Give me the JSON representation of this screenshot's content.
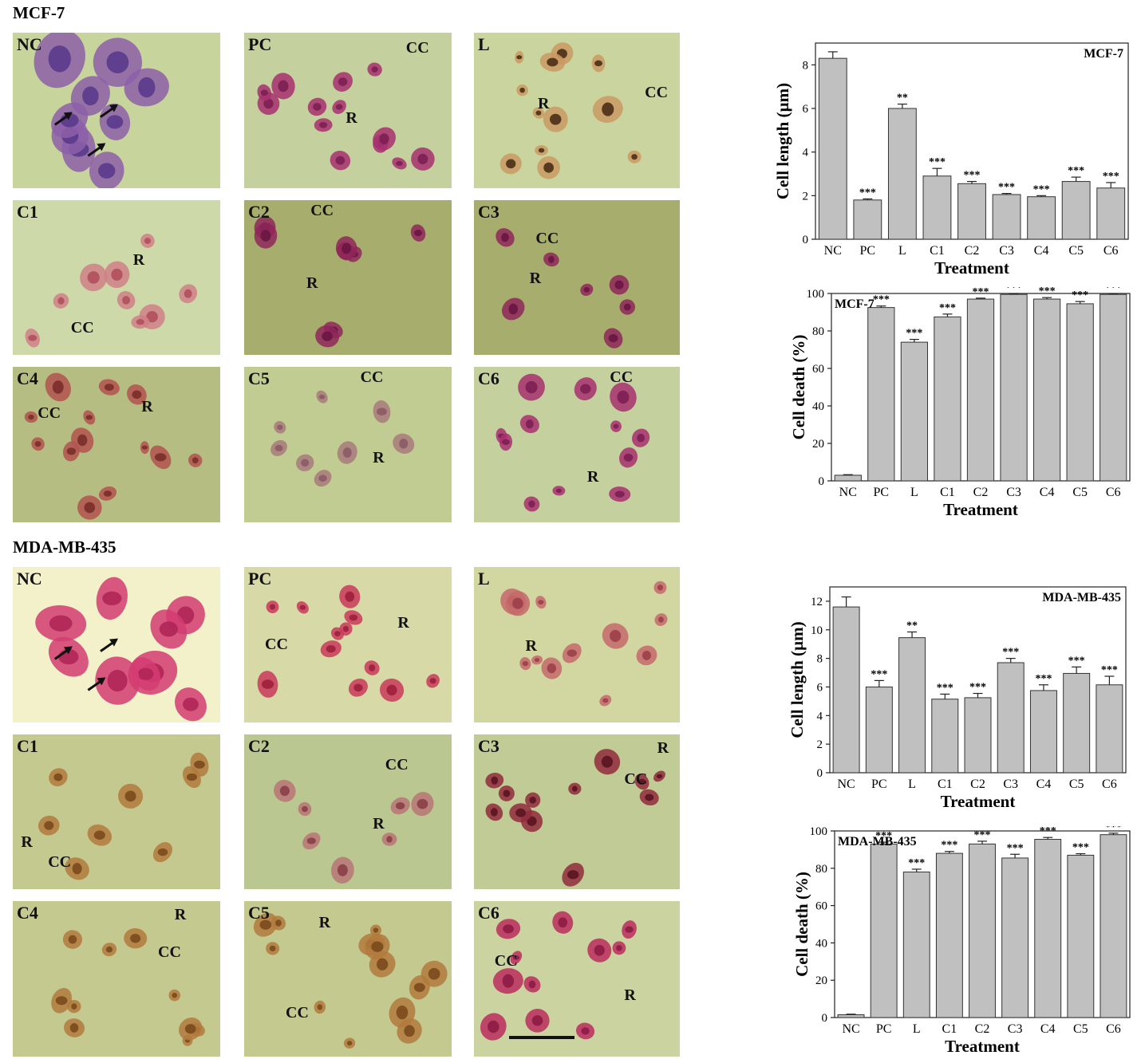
{
  "figure": {
    "sections": [
      {
        "id": "mcf7",
        "title": "MCF-7",
        "panels": [
          {
            "label": "NC",
            "stain": "purple",
            "annotations": []
          },
          {
            "label": "PC",
            "stain": "magenta",
            "annotations": [
              "CC",
              "R"
            ]
          },
          {
            "label": "L",
            "stain": "tan",
            "annotations": [
              "R",
              "CC"
            ]
          },
          {
            "label": "C1",
            "stain": "pink",
            "annotations": [
              "R",
              "CC"
            ]
          },
          {
            "label": "C2",
            "stain": "darkmagenta",
            "annotations": [
              "CC",
              "R"
            ]
          },
          {
            "label": "C3",
            "stain": "darkmagenta",
            "annotations": [
              "CC",
              "R"
            ]
          },
          {
            "label": "C4",
            "stain": "redtan",
            "annotations": [
              "CC",
              "R"
            ]
          },
          {
            "label": "C5",
            "stain": "mauve",
            "annotations": [
              "CC",
              "R"
            ]
          },
          {
            "label": "C6",
            "stain": "magenta",
            "annotations": [
              "CC",
              "R"
            ]
          }
        ]
      },
      {
        "id": "mda",
        "title": "MDA-MB-435",
        "panels": [
          {
            "label": "NC",
            "stain": "hotpink",
            "annotations": []
          },
          {
            "label": "PC",
            "stain": "red",
            "annotations": [
              "R",
              "CC"
            ]
          },
          {
            "label": "L",
            "stain": "rose",
            "annotations": [
              "R"
            ]
          },
          {
            "label": "C1",
            "stain": "brown",
            "annotations": [
              "R",
              "CC"
            ]
          },
          {
            "label": "C2",
            "stain": "rosebrown",
            "annotations": [
              "CC",
              "R"
            ]
          },
          {
            "label": "C3",
            "stain": "darkred",
            "annotations": [
              "R",
              "CC"
            ]
          },
          {
            "label": "C4",
            "stain": "brown",
            "annotations": [
              "R",
              "CC"
            ]
          },
          {
            "label": "C5",
            "stain": "brown",
            "annotations": [
              "R",
              "CC"
            ]
          },
          {
            "label": "C6",
            "stain": "redmagenta",
            "annotations": [
              "CC",
              "R"
            ]
          }
        ]
      }
    ]
  },
  "colors": {
    "background_green": "#c2d19a",
    "bar_fill": "#c0c0c0",
    "bar_stroke": "#333333"
  },
  "chart_data": [
    {
      "id": "mcf7-length",
      "type": "bar",
      "categories": [
        "NC",
        "PC",
        "L",
        "C1",
        "C2",
        "C3",
        "C4",
        "C5",
        "C6"
      ],
      "values": [
        8.3,
        1.8,
        6.0,
        2.9,
        2.55,
        2.05,
        1.95,
        2.65,
        2.35
      ],
      "errors": [
        0.3,
        0.05,
        0.2,
        0.35,
        0.1,
        0.05,
        0.05,
        0.2,
        0.25
      ],
      "significance": [
        "",
        "***",
        "**",
        "***",
        "***",
        "***",
        "***",
        "***",
        "***"
      ],
      "title": "MCF-7",
      "xlabel": "Treatment",
      "ylabel": "Cell length (µm)",
      "ylim": [
        0,
        9
      ],
      "yticks": [
        0,
        2,
        4,
        6,
        8
      ],
      "legend_position": "top-right"
    },
    {
      "id": "mcf7-death",
      "type": "bar",
      "categories": [
        "NC",
        "PC",
        "L",
        "C1",
        "C2",
        "C3",
        "C4",
        "C5",
        "C6"
      ],
      "values": [
        3,
        92.5,
        74,
        87.5,
        97,
        99.5,
        97,
        94.5,
        99.5
      ],
      "errors": [
        0.3,
        0.8,
        1.5,
        1.5,
        0.5,
        0.3,
        0.8,
        1.2,
        0.3
      ],
      "significance": [
        "",
        "***",
        "***",
        "***",
        "***",
        "***",
        "***",
        "***",
        "***"
      ],
      "title": "MCF-7",
      "xlabel": "Treatment",
      "ylabel": "Cell death (%)",
      "ylim": [
        0,
        100
      ],
      "yticks": [
        0,
        20,
        40,
        60,
        80,
        100
      ],
      "legend_position": "top-left"
    },
    {
      "id": "mda-length",
      "type": "bar",
      "categories": [
        "NC",
        "PC",
        "L",
        "C1",
        "C2",
        "C3",
        "C4",
        "C5",
        "C6"
      ],
      "values": [
        11.6,
        6.0,
        9.45,
        5.15,
        5.25,
        7.7,
        5.75,
        6.95,
        6.15
      ],
      "errors": [
        0.7,
        0.45,
        0.4,
        0.35,
        0.3,
        0.3,
        0.4,
        0.45,
        0.6
      ],
      "significance": [
        "",
        "***",
        "**",
        "***",
        "***",
        "***",
        "***",
        "***",
        "***"
      ],
      "title": "MDA-MB-435",
      "xlabel": "Treatment",
      "ylabel": "Cell length (µm)",
      "ylim": [
        0,
        13
      ],
      "yticks": [
        0,
        2,
        4,
        6,
        8,
        10,
        12
      ],
      "legend_position": "top-right"
    },
    {
      "id": "mda-death",
      "type": "bar",
      "categories": [
        "NC",
        "PC",
        "L",
        "C1",
        "C2",
        "C3",
        "C4",
        "C5",
        "C6"
      ],
      "values": [
        1.5,
        93,
        78,
        88,
        93,
        85.5,
        95.5,
        87,
        98
      ],
      "errors": [
        0.3,
        1,
        1.5,
        1,
        1.5,
        2,
        1,
        0.8,
        0.8
      ],
      "significance": [
        "",
        "***",
        "***",
        "***",
        "***",
        "***",
        "***",
        "***",
        "***"
      ],
      "title": "MDA-MB-435",
      "xlabel": "Treatment",
      "ylabel": "Cell death (%)",
      "ylim": [
        0,
        100
      ],
      "yticks": [
        0,
        20,
        40,
        60,
        80,
        100
      ],
      "legend_position": "top-left"
    }
  ]
}
